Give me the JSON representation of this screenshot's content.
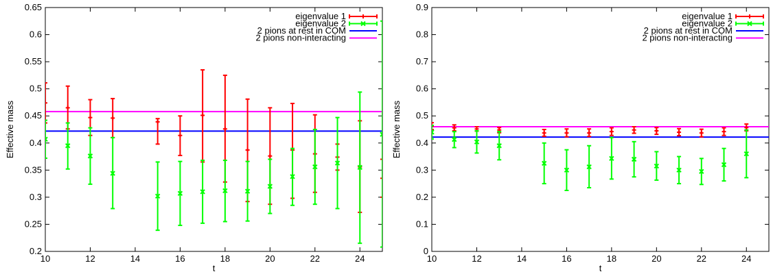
{
  "chart_data": [
    {
      "type": "scatter",
      "xlabel": "t",
      "ylabel": "Effective mass",
      "xlim": [
        10,
        25
      ],
      "ylim": [
        0.2,
        0.65
      ],
      "xticks": [
        10,
        12,
        14,
        16,
        18,
        20,
        22,
        24
      ],
      "yticks": [
        0.2,
        0.25,
        0.3,
        0.35,
        0.4,
        0.45,
        0.5,
        0.55,
        0.6,
        0.65
      ],
      "legend_position": "top-right",
      "grid": false,
      "series": [
        {
          "name": "eigenvalue 1",
          "color": "#ff0000",
          "marker": "plus",
          "points": [
            {
              "x": 10,
              "y": 0.474,
              "lo": 0.437,
              "hi": 0.511
            },
            {
              "x": 11,
              "y": 0.465,
              "lo": 0.426,
              "hi": 0.505
            },
            {
              "x": 12,
              "y": 0.447,
              "lo": 0.414,
              "hi": 0.48
            },
            {
              "x": 13,
              "y": 0.446,
              "lo": 0.41,
              "hi": 0.482
            },
            {
              "x": 15,
              "y": 0.439,
              "lo": 0.398,
              "hi": 0.445
            },
            {
              "x": 16,
              "y": 0.414,
              "lo": 0.377,
              "hi": 0.45
            },
            {
              "x": 17,
              "y": 0.451,
              "lo": 0.365,
              "hi": 0.535
            },
            {
              "x": 18,
              "y": 0.426,
              "lo": 0.328,
              "hi": 0.525
            },
            {
              "x": 19,
              "y": 0.387,
              "lo": 0.292,
              "hi": 0.481
            },
            {
              "x": 20,
              "y": 0.376,
              "lo": 0.287,
              "hi": 0.465
            },
            {
              "x": 21,
              "y": 0.387,
              "lo": 0.298,
              "hi": 0.473
            },
            {
              "x": 22,
              "y": 0.38,
              "lo": 0.309,
              "hi": 0.452
            },
            {
              "x": 23,
              "y": 0.374,
              "lo": 0.35,
              "hi": 0.398
            },
            {
              "x": 24,
              "y": 0.356,
              "lo": 0.272,
              "hi": 0.441
            },
            {
              "x": 25,
              "y": 0.335,
              "lo": 0.3,
              "hi": 0.37
            }
          ]
        },
        {
          "name": "eigenvalue 2",
          "color": "#00ff00",
          "marker": "cross",
          "points": [
            {
              "x": 10,
              "y": 0.407,
              "lo": 0.372,
              "hi": 0.442
            },
            {
              "x": 11,
              "y": 0.395,
              "lo": 0.352,
              "hi": 0.437
            },
            {
              "x": 12,
              "y": 0.376,
              "lo": 0.324,
              "hi": 0.428
            },
            {
              "x": 13,
              "y": 0.344,
              "lo": 0.279,
              "hi": 0.41
            },
            {
              "x": 15,
              "y": 0.302,
              "lo": 0.239,
              "hi": 0.365
            },
            {
              "x": 16,
              "y": 0.307,
              "lo": 0.248,
              "hi": 0.366
            },
            {
              "x": 17,
              "y": 0.31,
              "lo": 0.252,
              "hi": 0.368
            },
            {
              "x": 18,
              "y": 0.312,
              "lo": 0.255,
              "hi": 0.368
            },
            {
              "x": 19,
              "y": 0.311,
              "lo": 0.256,
              "hi": 0.366
            },
            {
              "x": 20,
              "y": 0.32,
              "lo": 0.27,
              "hi": 0.37
            },
            {
              "x": 21,
              "y": 0.338,
              "lo": 0.285,
              "hi": 0.39
            },
            {
              "x": 22,
              "y": 0.356,
              "lo": 0.287,
              "hi": 0.425
            },
            {
              "x": 23,
              "y": 0.363,
              "lo": 0.279,
              "hi": 0.447
            },
            {
              "x": 24,
              "y": 0.355,
              "lo": 0.215,
              "hi": 0.494
            },
            {
              "x": 25,
              "y": 0.416,
              "lo": 0.208,
              "hi": 0.625
            }
          ]
        },
        {
          "name": "2 pions at rest in COM",
          "color": "#0000ff",
          "type": "hline",
          "y": 0.422
        },
        {
          "name": "2 pions non-interacting",
          "color": "#ff00ff",
          "type": "hline",
          "y": 0.458
        }
      ]
    },
    {
      "type": "scatter",
      "xlabel": "t",
      "ylabel": "Effective mass",
      "xlim": [
        10,
        25
      ],
      "ylim": [
        0,
        0.9
      ],
      "xticks": [
        10,
        12,
        14,
        16,
        18,
        20,
        22,
        24
      ],
      "yticks": [
        0,
        0.1,
        0.2,
        0.3,
        0.4,
        0.5,
        0.6,
        0.7,
        0.8,
        0.9
      ],
      "legend_position": "top-right",
      "grid": false,
      "series": [
        {
          "name": "eigenvalue 1",
          "color": "#ff0000",
          "marker": "plus",
          "points": [
            {
              "x": 10,
              "y": 0.462,
              "lo": 0.45,
              "hi": 0.475
            },
            {
              "x": 11,
              "y": 0.456,
              "lo": 0.445,
              "hi": 0.467
            },
            {
              "x": 12,
              "y": 0.452,
              "lo": 0.444,
              "hi": 0.46
            },
            {
              "x": 13,
              "y": 0.448,
              "lo": 0.438,
              "hi": 0.457
            },
            {
              "x": 15,
              "y": 0.437,
              "lo": 0.425,
              "hi": 0.45
            },
            {
              "x": 16,
              "y": 0.437,
              "lo": 0.423,
              "hi": 0.452
            },
            {
              "x": 17,
              "y": 0.437,
              "lo": 0.424,
              "hi": 0.452
            },
            {
              "x": 18,
              "y": 0.442,
              "lo": 0.428,
              "hi": 0.456
            },
            {
              "x": 19,
              "y": 0.448,
              "lo": 0.436,
              "hi": 0.46
            },
            {
              "x": 20,
              "y": 0.445,
              "lo": 0.432,
              "hi": 0.457
            },
            {
              "x": 21,
              "y": 0.44,
              "lo": 0.427,
              "hi": 0.453
            },
            {
              "x": 22,
              "y": 0.437,
              "lo": 0.423,
              "hi": 0.451
            },
            {
              "x": 23,
              "y": 0.442,
              "lo": 0.428,
              "hi": 0.456
            },
            {
              "x": 24,
              "y": 0.457,
              "lo": 0.445,
              "hi": 0.47
            }
          ]
        },
        {
          "name": "eigenvalue 2",
          "color": "#00ff00",
          "marker": "cross",
          "points": [
            {
              "x": 10,
              "y": 0.44,
              "lo": 0.415,
              "hi": 0.465
            },
            {
              "x": 11,
              "y": 0.413,
              "lo": 0.383,
              "hi": 0.442
            },
            {
              "x": 12,
              "y": 0.404,
              "lo": 0.363,
              "hi": 0.445
            },
            {
              "x": 13,
              "y": 0.39,
              "lo": 0.338,
              "hi": 0.442
            },
            {
              "x": 15,
              "y": 0.325,
              "lo": 0.25,
              "hi": 0.4
            },
            {
              "x": 16,
              "y": 0.3,
              "lo": 0.225,
              "hi": 0.375
            },
            {
              "x": 17,
              "y": 0.312,
              "lo": 0.235,
              "hi": 0.39
            },
            {
              "x": 18,
              "y": 0.343,
              "lo": 0.267,
              "hi": 0.42
            },
            {
              "x": 19,
              "y": 0.34,
              "lo": 0.275,
              "hi": 0.405
            },
            {
              "x": 20,
              "y": 0.315,
              "lo": 0.263,
              "hi": 0.368
            },
            {
              "x": 21,
              "y": 0.3,
              "lo": 0.25,
              "hi": 0.35
            },
            {
              "x": 22,
              "y": 0.295,
              "lo": 0.247,
              "hi": 0.343
            },
            {
              "x": 23,
              "y": 0.32,
              "lo": 0.26,
              "hi": 0.38
            },
            {
              "x": 24,
              "y": 0.36,
              "lo": 0.272,
              "hi": 0.448
            }
          ]
        },
        {
          "name": "2 pions at rest in COM",
          "color": "#0000ff",
          "type": "hline",
          "y": 0.422
        },
        {
          "name": "2 pions non-interacting",
          "color": "#ff00ff",
          "type": "hline",
          "y": 0.46
        }
      ]
    }
  ]
}
